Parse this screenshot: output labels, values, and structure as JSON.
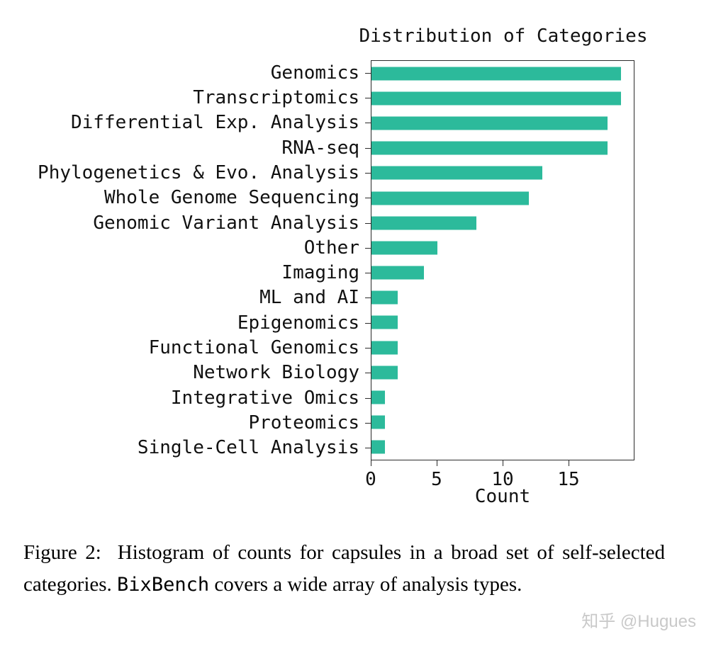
{
  "chart_data": {
    "type": "bar",
    "orientation": "horizontal",
    "title": "Distribution of Categories",
    "xlabel": "Count",
    "ylabel": "",
    "xlim": [
      0,
      20
    ],
    "xticks": [
      0,
      5,
      10,
      15
    ],
    "grid": false,
    "legend": false,
    "bar_color": "#2cba9b",
    "categories": [
      "Genomics",
      "Transcriptomics",
      "Differential Exp. Analysis",
      "RNA-seq",
      "Phylogenetics & Evo. Analysis",
      "Whole Genome Sequencing",
      "Genomic Variant Analysis",
      "Other",
      "Imaging",
      "ML and AI",
      "Epigenomics",
      "Functional Genomics",
      "Network Biology",
      "Integrative Omics",
      "Proteomics",
      "Single-Cell Analysis"
    ],
    "values": [
      19,
      19,
      18,
      18,
      13,
      12,
      8,
      5,
      4,
      2,
      2,
      2,
      2,
      1,
      1,
      1
    ]
  },
  "caption": {
    "part1": "Figure 2:  Histogram of counts for capsules in a broad set of self-selected categories. ",
    "code": "BixBench",
    "part2": " covers a wide array of analysis types."
  },
  "watermark": "知乎 @Hugues"
}
